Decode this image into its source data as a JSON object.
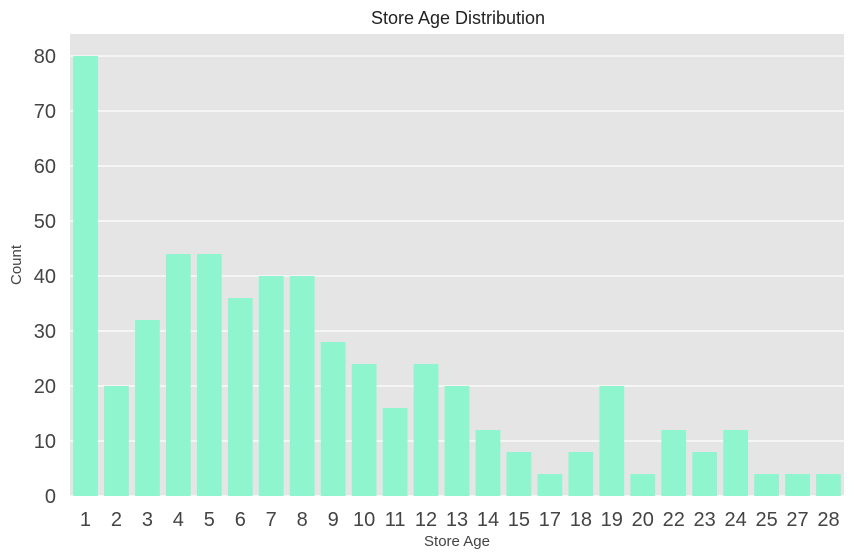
{
  "chart_data": {
    "type": "bar",
    "title": "Store Age Distribution",
    "xlabel": "Store Age",
    "ylabel": "Count",
    "categories": [
      "1",
      "2",
      "3",
      "4",
      "5",
      "6",
      "7",
      "8",
      "9",
      "10",
      "11",
      "12",
      "13",
      "14",
      "15",
      "17",
      "18",
      "19",
      "20",
      "22",
      "23",
      "24",
      "25",
      "27",
      "28"
    ],
    "values": [
      80,
      20,
      32,
      44,
      44,
      36,
      40,
      40,
      28,
      24,
      16,
      24,
      20,
      12,
      8,
      4,
      8,
      20,
      4,
      12,
      8,
      12,
      4,
      4,
      4
    ],
    "ylim": [
      0,
      84
    ],
    "yticks": [
      "0",
      "10",
      "20",
      "30",
      "40",
      "50",
      "60",
      "70",
      "80"
    ],
    "grid": true,
    "legend": "none",
    "colors": {
      "bar": "#8ef5cf",
      "plot_bg": "#e5e5e5",
      "grid": "#ffffff"
    }
  }
}
